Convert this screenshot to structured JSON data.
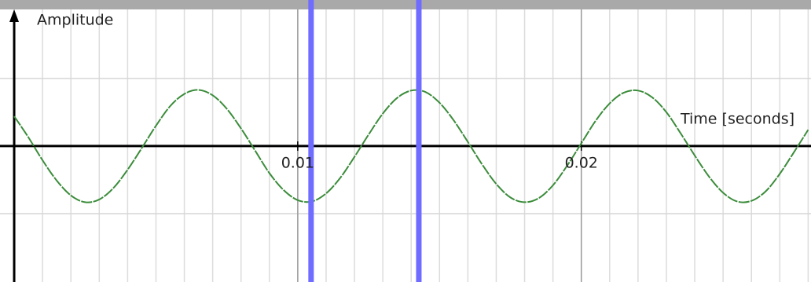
{
  "chart_data": {
    "type": "line",
    "y_label": "Amplitude",
    "x_label": "Time [seconds]",
    "x": [
      0,
      0.0005,
      0.001,
      0.0015,
      0.002,
      0.0025,
      0.003,
      0.0035,
      0.004,
      0.0045,
      0.005,
      0.0055,
      0.006,
      0.0065,
      0.007,
      0.0075,
      0.008,
      0.0085,
      0.009,
      0.0095,
      0.01,
      0.0105,
      0.011,
      0.0115,
      0.012,
      0.0125,
      0.013,
      0.0135,
      0.014,
      0.0145,
      0.015,
      0.0155,
      0.016,
      0.0165,
      0.017,
      0.0175,
      0.018,
      0.0185,
      0.019,
      0.0195,
      0.02,
      0.0205,
      0.021,
      0.0215,
      0.022,
      0.0225,
      0.023,
      0.0235,
      0.024,
      0.0245,
      0.025,
      0.0255,
      0.026,
      0.0265,
      0.027,
      0.0275,
      0.028
    ],
    "series": [
      {
        "color": "#3b8c3b",
        "values": [
          0.44,
          0.13,
          -0.21,
          -0.51,
          -0.73,
          -0.83,
          -0.79,
          -0.62,
          -0.35,
          -0.03,
          0.3,
          0.59,
          0.77,
          0.83,
          0.75,
          0.55,
          0.26,
          -0.07,
          -0.4,
          -0.65,
          -0.8,
          -0.82,
          -0.7,
          -0.47,
          -0.16,
          0.17,
          0.48,
          0.71,
          0.82,
          0.8,
          0.64,
          0.38,
          0.06,
          -0.27,
          -0.56,
          -0.76,
          -0.83,
          -0.77,
          -0.58,
          -0.29,
          0.04,
          0.37,
          0.63,
          0.79,
          0.82,
          0.72,
          0.5,
          0.19,
          -0.14,
          -0.45,
          -0.69,
          -0.82,
          -0.81,
          -0.67,
          -0.41,
          -0.09,
          0.24
        ]
      }
    ],
    "xlim": [
      -0.0005,
      0.0281
    ],
    "ylim": [
      -2.01,
      2.02
    ],
    "xticks": [
      0.01,
      0.02
    ],
    "yticks": [
      -1,
      1
    ],
    "x_minor_step": 0.001,
    "grid": true,
    "cursors": [
      0.01047,
      0.01427
    ],
    "cursor_color": "#6f6cff"
  }
}
